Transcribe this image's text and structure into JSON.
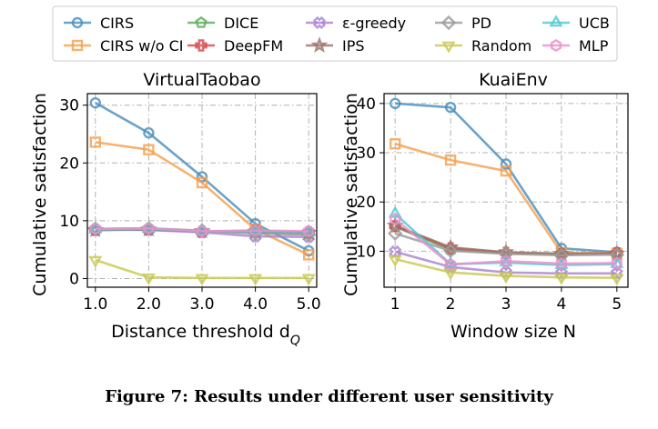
{
  "figure": {
    "caption": "Figure 7: Results under different user sensitivity"
  },
  "legend": {
    "placement": "top-center",
    "entries": [
      {
        "name": "CIRS",
        "color": "#4c8fbd",
        "marker": "circle"
      },
      {
        "name": "CIRS w/o CI",
        "color": "#f4a14f",
        "marker": "square"
      },
      {
        "name": "DICE",
        "color": "#5cae5c",
        "marker": "pentagon"
      },
      {
        "name": "DeepFM",
        "color": "#d8484a",
        "marker": "plus"
      },
      {
        "name": "ε-greedy",
        "color": "#a984cf",
        "marker": "x"
      },
      {
        "name": "IPS",
        "color": "#9b7469",
        "marker": "star"
      },
      {
        "name": "PD",
        "color": "#9b9b9b",
        "marker": "diamond"
      },
      {
        "name": "Random",
        "color": "#c8c850",
        "marker": "triangle-down"
      },
      {
        "name": "UCB",
        "color": "#4fc8d4",
        "marker": "triangle-up"
      },
      {
        "name": "MLP",
        "color": "#ec8fcb",
        "marker": "hexagon"
      }
    ]
  },
  "chart_data": [
    {
      "type": "line",
      "title": "VirtualTaobao",
      "xlabel": "Distance threshold d",
      "xlabel_sub": "Q",
      "ylabel": "Cumulative satisfaction",
      "x": [
        1.0,
        2.0,
        3.0,
        4.0,
        5.0
      ],
      "x_tick_labels": [
        "1.0",
        "2.0",
        "3.0",
        "4.0",
        "5.0"
      ],
      "xlim": [
        0.85,
        5.15
      ],
      "ylim": [
        -1.5,
        32
      ],
      "y_ticks": [
        0,
        10,
        20,
        30
      ],
      "grid": true,
      "series": [
        {
          "name": "CIRS",
          "values": [
            30.4,
            25.2,
            17.6,
            9.5,
            4.8
          ]
        },
        {
          "name": "CIRS w/o CI",
          "values": [
            23.6,
            22.3,
            16.6,
            8.5,
            4.1
          ]
        },
        {
          "name": "DICE",
          "values": [
            8.5,
            8.6,
            8.2,
            8.0,
            7.8
          ]
        },
        {
          "name": "DeepFM",
          "values": [
            8.4,
            8.5,
            8.1,
            8.3,
            8.0
          ]
        },
        {
          "name": "ε-greedy",
          "values": [
            8.5,
            8.4,
            8.0,
            7.3,
            7.2
          ]
        },
        {
          "name": "IPS",
          "values": [
            8.4,
            8.5,
            8.2,
            8.1,
            7.9
          ]
        },
        {
          "name": "PD",
          "values": [
            8.6,
            8.7,
            8.3,
            7.8,
            7.6
          ]
        },
        {
          "name": "Random",
          "values": [
            3.2,
            0.2,
            0.1,
            0.1,
            0.1
          ]
        },
        {
          "name": "UCB",
          "values": [
            8.5,
            8.6,
            8.2,
            8.2,
            8.0
          ]
        },
        {
          "name": "MLP",
          "values": [
            8.6,
            8.7,
            8.2,
            8.3,
            8.2
          ]
        }
      ]
    },
    {
      "type": "line",
      "title": "KuaiEnv",
      "xlabel": "Window size N",
      "xlabel_sub": "",
      "ylabel": "Cumulative satisfaction",
      "x": [
        1,
        2,
        3,
        4,
        5
      ],
      "x_tick_labels": [
        "1",
        "2",
        "3",
        "4",
        "5"
      ],
      "xlim": [
        0.8,
        5.2
      ],
      "ylim": [
        2.7,
        42
      ],
      "y_ticks": [
        10,
        20,
        30,
        40
      ],
      "grid": true,
      "series": [
        {
          "name": "CIRS",
          "values": [
            40.0,
            39.2,
            27.7,
            10.6,
            9.8
          ]
        },
        {
          "name": "CIRS w/o CI",
          "values": [
            31.8,
            28.5,
            26.3,
            9.7,
            9.6
          ]
        },
        {
          "name": "DICE",
          "values": [
            15.0,
            10.3,
            9.6,
            9.5,
            9.5
          ]
        },
        {
          "name": "DeepFM",
          "values": [
            15.1,
            10.6,
            9.7,
            9.4,
            9.6
          ]
        },
        {
          "name": "ε-greedy",
          "values": [
            9.9,
            6.8,
            5.7,
            5.5,
            5.5
          ]
        },
        {
          "name": "IPS",
          "values": [
            15.2,
            10.8,
            9.8,
            9.5,
            9.5
          ]
        },
        {
          "name": "PD",
          "values": [
            13.6,
            10.1,
            9.5,
            9.2,
            9.3
          ]
        },
        {
          "name": "Random",
          "values": [
            8.4,
            5.7,
            5.0,
            4.7,
            4.6
          ]
        },
        {
          "name": "UCB",
          "values": [
            17.6,
            7.4,
            7.7,
            7.2,
            7.4
          ]
        },
        {
          "name": "MLP",
          "values": [
            16.5,
            7.3,
            8.0,
            7.5,
            7.6
          ]
        }
      ]
    }
  ]
}
